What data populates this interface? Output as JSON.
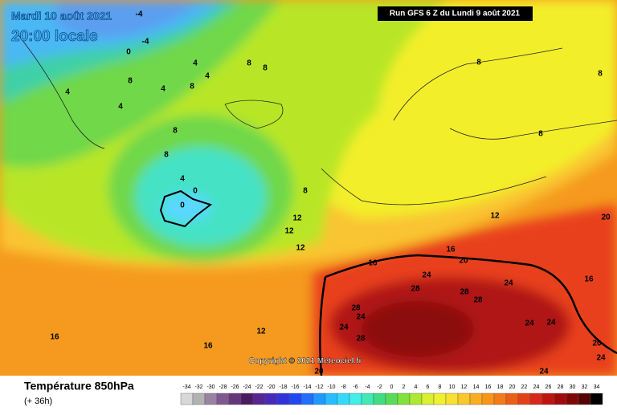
{
  "header": {
    "date": "Mardi 10 août 2021",
    "time": "20:00 locale",
    "run": "Run GFS 6 Z du Lundi 9 août 2021"
  },
  "copyright": "Copyright © 2021 Meteociel.fr",
  "footer": {
    "title": "Température 850hPa",
    "lead": "(+ 36h)"
  },
  "legend": {
    "labels": [
      -34,
      -32,
      -30,
      -28,
      -26,
      -24,
      -22,
      -20,
      -18,
      -16,
      -14,
      -12,
      -10,
      -8,
      -6,
      -4,
      -2,
      0,
      2,
      4,
      6,
      8,
      10,
      12,
      14,
      16,
      18,
      20,
      22,
      24,
      26,
      28,
      30,
      32,
      34
    ]
  },
  "contour_labels": [
    "-4",
    "-4",
    "0",
    "4",
    "8",
    "8",
    "4",
    "8",
    "4",
    "4",
    "8",
    "4",
    "8",
    "8",
    "4",
    "0",
    "0",
    "8",
    "12",
    "12",
    "12",
    "16",
    "16",
    "20",
    "24",
    "28",
    "28",
    "28",
    "24",
    "28",
    "24",
    "24",
    "28",
    "24",
    "24",
    "16",
    "20",
    "24",
    "24",
    "20",
    "12",
    "16",
    "16",
    "8",
    "8",
    "8",
    "12",
    "20"
  ]
}
